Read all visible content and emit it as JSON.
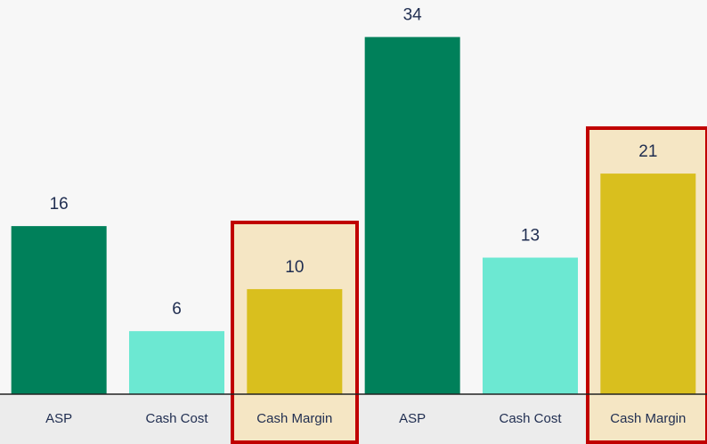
{
  "chart_data": {
    "type": "bar",
    "categories": [
      "ASP",
      "Cash Cost",
      "Cash Margin",
      "ASP",
      "Cash Cost",
      "Cash Margin"
    ],
    "values": [
      16,
      6,
      10,
      34,
      13,
      21
    ],
    "colors": [
      "#00805a",
      "#6ce8d2",
      "#d9bf1e",
      "#00805a",
      "#6ce8d2",
      "#d9bf1e"
    ],
    "ylim": [
      0,
      36
    ]
  }
}
